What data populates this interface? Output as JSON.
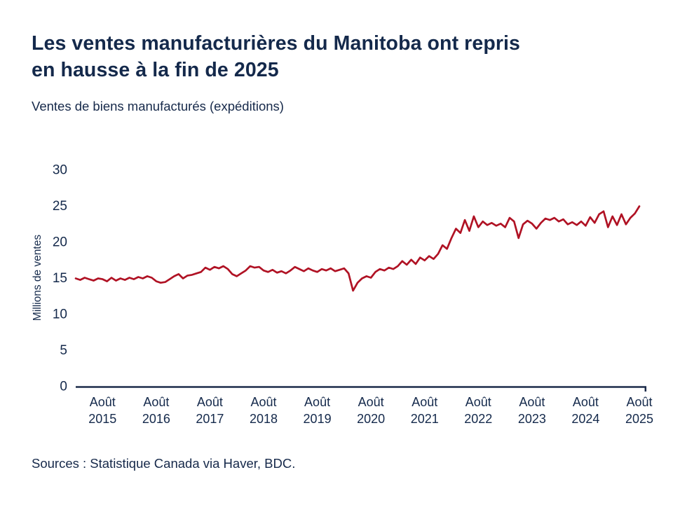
{
  "title": "Les ventes manufacturières du Manitoba ont repris\nen hausse à la fin de 2025",
  "subtitle": "Ventes de biens manufacturés (expéditions)",
  "source": "Sources : Statistique Canada via Haver, BDC.",
  "colors": {
    "text": "#14294b",
    "axis": "#1c2b4a",
    "line": "#b01224"
  },
  "chart_data": {
    "type": "line",
    "title": "Les ventes manufacturières du Manitoba ont repris en hausse à la fin de 2025",
    "subtitle": "Ventes de biens manufacturés (expéditions)",
    "xlabel": "",
    "ylabel": "Millions de ventes",
    "ylim": [
      0,
      30
    ],
    "yticks": [
      0,
      5,
      10,
      15,
      20,
      25,
      30
    ],
    "grid": false,
    "legend": "none",
    "x_start": "2015-02",
    "x_frequency": "monthly",
    "xticks": [
      {
        "month": "Août",
        "year": "2015"
      },
      {
        "month": "Août",
        "year": "2016"
      },
      {
        "month": "Août",
        "year": "2017"
      },
      {
        "month": "Août",
        "year": "2018"
      },
      {
        "month": "Août",
        "year": "2019"
      },
      {
        "month": "Août",
        "year": "2020"
      },
      {
        "month": "Août",
        "year": "2021"
      },
      {
        "month": "Août",
        "year": "2022"
      },
      {
        "month": "Août",
        "year": "2023"
      },
      {
        "month": "Août",
        "year": "2024"
      },
      {
        "month": "Août",
        "year": "2025"
      }
    ],
    "series": [
      {
        "name": "Ventes de biens manufacturés (expéditions), millions",
        "color": "#b01224",
        "values": [
          14.9,
          14.7,
          15.0,
          14.8,
          14.6,
          14.9,
          14.8,
          14.5,
          15.0,
          14.6,
          14.9,
          14.7,
          15.0,
          14.8,
          15.1,
          14.9,
          15.2,
          15.0,
          14.5,
          14.3,
          14.4,
          14.8,
          15.2,
          15.5,
          14.9,
          15.3,
          15.4,
          15.6,
          15.8,
          16.4,
          16.1,
          16.5,
          16.3,
          16.6,
          16.2,
          15.5,
          15.2,
          15.6,
          16.0,
          16.6,
          16.4,
          16.5,
          16.0,
          15.8,
          16.1,
          15.7,
          15.9,
          15.6,
          16.0,
          16.5,
          16.2,
          15.9,
          16.3,
          16.0,
          15.8,
          16.2,
          16.0,
          16.3,
          15.9,
          16.1,
          16.3,
          15.6,
          13.2,
          14.3,
          14.9,
          15.2,
          15.0,
          15.8,
          16.2,
          16.0,
          16.4,
          16.2,
          16.6,
          17.3,
          16.8,
          17.5,
          16.9,
          17.8,
          17.4,
          18.0,
          17.6,
          18.3,
          19.5,
          19.0,
          20.5,
          21.8,
          21.2,
          23.0,
          21.5,
          23.5,
          22.0,
          22.8,
          22.3,
          22.6,
          22.2,
          22.5,
          22.0,
          23.3,
          22.8,
          20.5,
          22.4,
          22.9,
          22.5,
          21.8,
          22.6,
          23.2,
          23.0,
          23.3,
          22.8,
          23.1,
          22.4,
          22.7,
          22.3,
          22.8,
          22.2,
          23.4,
          22.6,
          23.8,
          24.2,
          22.0,
          23.5,
          22.3,
          23.8,
          22.4,
          23.3,
          23.9,
          24.9
        ]
      }
    ]
  }
}
